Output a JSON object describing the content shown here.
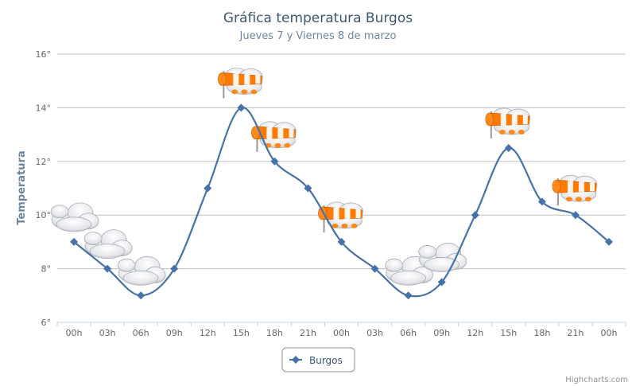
{
  "chart_data": {
    "type": "line",
    "title": "Gráfica temperatura Burgos",
    "subtitle": "Jueves 7 y Viernes 8 de marzo",
    "ylabel": "Temperatura",
    "xlabel": "",
    "categories": [
      "00h",
      "03h",
      "06h",
      "09h",
      "12h",
      "15h",
      "18h",
      "21h",
      "00h",
      "03h",
      "06h",
      "09h",
      "12h",
      "15h",
      "18h",
      "21h",
      "00h"
    ],
    "series": [
      {
        "name": "Burgos",
        "color": "#4572a7",
        "values": [
          9,
          8,
          7,
          8,
          11,
          14,
          12,
          11,
          9,
          8,
          7,
          7.5,
          10,
          12.5,
          10.5,
          10,
          9
        ]
      }
    ],
    "weather_icons": [
      "cloudy",
      "cloudy",
      "cloudy",
      "",
      "",
      "windy",
      "windy",
      "",
      "windy",
      "",
      "cloudy",
      "cloudy",
      "",
      "windy",
      "",
      "windy",
      ""
    ],
    "ylim": [
      6,
      16
    ],
    "yticks": [
      6,
      8,
      10,
      12,
      14,
      16
    ],
    "ytick_suffix": "°",
    "grid": true,
    "legend_position": "bottom-center",
    "credits": "Highcharts.com"
  }
}
